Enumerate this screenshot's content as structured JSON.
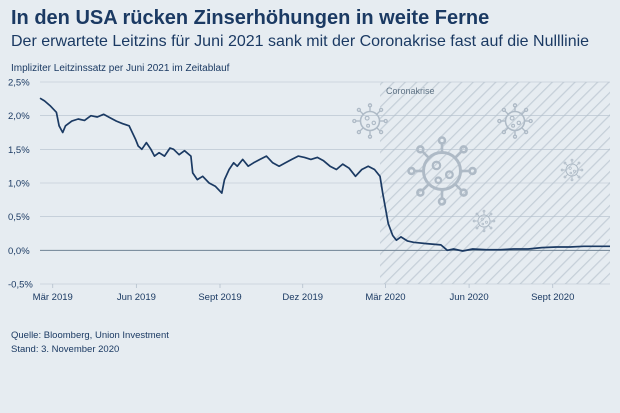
{
  "header": {
    "title": "In den USA rücken Zinserhöhungen in weite Ferne",
    "subtitle": "Der erwartete Leitzins für Juni 2021 sank mit der Coronakrise fast auf die Nulllinie"
  },
  "footer": {
    "source": "Quelle: Bloomberg, Union Investment",
    "date": "Stand: 3. November 2020"
  },
  "chart_data": {
    "type": "line",
    "ylabel": "Impliziter Leitzinssatz per Juni 2021 im Zeitablauf",
    "ylim": [
      -0.5,
      2.5
    ],
    "yticks": [
      {
        "value": 2.5,
        "label": "2,5%"
      },
      {
        "value": 2.0,
        "label": "2,0%"
      },
      {
        "value": 1.5,
        "label": "1,5%"
      },
      {
        "value": 1.0,
        "label": "1,0%"
      },
      {
        "value": 0.5,
        "label": "0,5%"
      },
      {
        "value": 0.0,
        "label": "0,0%"
      },
      {
        "value": -0.5,
        "label": "-0,5%"
      }
    ],
    "xlim": [
      "2019-02-15",
      "2020-11-03"
    ],
    "xticks": [
      {
        "date": "2019-03-01",
        "label": "Mär 2019"
      },
      {
        "date": "2019-06-01",
        "label": "Jun 2019"
      },
      {
        "date": "2019-09-01",
        "label": "Sept 2019"
      },
      {
        "date": "2019-12-01",
        "label": "Dez 2019"
      },
      {
        "date": "2020-03-01",
        "label": "Mär 2020"
      },
      {
        "date": "2020-06-01",
        "label": "Jun 2020"
      },
      {
        "date": "2020-09-01",
        "label": "Sept 2020"
      }
    ],
    "region": {
      "label": "Coronakrise",
      "start": "2020-02-24",
      "end": "2020-11-03"
    },
    "grid": true,
    "colors": {
      "line": "#1b3a63",
      "grid": "#b3c0cc",
      "zero": "#6f8394",
      "region_hatch": "#c5cfd8",
      "virus": "#aebac6"
    },
    "series": [
      {
        "points": [
          [
            "2019-02-15",
            2.26
          ],
          [
            "2019-02-20",
            2.22
          ],
          [
            "2019-02-26",
            2.15
          ],
          [
            "2019-03-05",
            2.05
          ],
          [
            "2019-03-08",
            1.85
          ],
          [
            "2019-03-12",
            1.75
          ],
          [
            "2019-03-15",
            1.85
          ],
          [
            "2019-03-22",
            1.92
          ],
          [
            "2019-03-29",
            1.95
          ],
          [
            "2019-04-05",
            1.93
          ],
          [
            "2019-04-12",
            2.0
          ],
          [
            "2019-04-19",
            1.98
          ],
          [
            "2019-04-26",
            2.02
          ],
          [
            "2019-05-03",
            1.97
          ],
          [
            "2019-05-10",
            1.92
          ],
          [
            "2019-05-17",
            1.88
          ],
          [
            "2019-05-24",
            1.85
          ],
          [
            "2019-05-31",
            1.65
          ],
          [
            "2019-06-03",
            1.55
          ],
          [
            "2019-06-07",
            1.5
          ],
          [
            "2019-06-12",
            1.6
          ],
          [
            "2019-06-17",
            1.5
          ],
          [
            "2019-06-21",
            1.4
          ],
          [
            "2019-06-26",
            1.45
          ],
          [
            "2019-07-02",
            1.4
          ],
          [
            "2019-07-08",
            1.52
          ],
          [
            "2019-07-12",
            1.5
          ],
          [
            "2019-07-18",
            1.42
          ],
          [
            "2019-07-24",
            1.48
          ],
          [
            "2019-07-31",
            1.4
          ],
          [
            "2019-08-02",
            1.15
          ],
          [
            "2019-08-07",
            1.05
          ],
          [
            "2019-08-13",
            1.1
          ],
          [
            "2019-08-20",
            1.0
          ],
          [
            "2019-08-27",
            0.95
          ],
          [
            "2019-09-03",
            0.85
          ],
          [
            "2019-09-06",
            1.05
          ],
          [
            "2019-09-11",
            1.2
          ],
          [
            "2019-09-16",
            1.3
          ],
          [
            "2019-09-20",
            1.25
          ],
          [
            "2019-09-26",
            1.35
          ],
          [
            "2019-10-02",
            1.25
          ],
          [
            "2019-10-08",
            1.3
          ],
          [
            "2019-10-15",
            1.35
          ],
          [
            "2019-10-22",
            1.4
          ],
          [
            "2019-10-29",
            1.3
          ],
          [
            "2019-11-05",
            1.25
          ],
          [
            "2019-11-12",
            1.3
          ],
          [
            "2019-11-19",
            1.35
          ],
          [
            "2019-11-26",
            1.4
          ],
          [
            "2019-12-03",
            1.38
          ],
          [
            "2019-12-10",
            1.35
          ],
          [
            "2019-12-17",
            1.38
          ],
          [
            "2019-12-24",
            1.33
          ],
          [
            "2019-12-31",
            1.25
          ],
          [
            "2020-01-07",
            1.2
          ],
          [
            "2020-01-14",
            1.28
          ],
          [
            "2020-01-21",
            1.22
          ],
          [
            "2020-01-28",
            1.1
          ],
          [
            "2020-02-04",
            1.2
          ],
          [
            "2020-02-11",
            1.25
          ],
          [
            "2020-02-18",
            1.2
          ],
          [
            "2020-02-24",
            1.1
          ],
          [
            "2020-02-27",
            0.85
          ],
          [
            "2020-03-02",
            0.55
          ],
          [
            "2020-03-04",
            0.4
          ],
          [
            "2020-03-09",
            0.22
          ],
          [
            "2020-03-13",
            0.15
          ],
          [
            "2020-03-18",
            0.2
          ],
          [
            "2020-03-25",
            0.14
          ],
          [
            "2020-04-01",
            0.12
          ],
          [
            "2020-04-15",
            0.1
          ],
          [
            "2020-05-01",
            0.08
          ],
          [
            "2020-05-08",
            0.0
          ],
          [
            "2020-05-15",
            0.02
          ],
          [
            "2020-05-25",
            -0.01
          ],
          [
            "2020-06-05",
            0.02
          ],
          [
            "2020-06-20",
            0.01
          ],
          [
            "2020-07-05",
            0.01
          ],
          [
            "2020-07-20",
            0.02
          ],
          [
            "2020-08-05",
            0.02
          ],
          [
            "2020-08-20",
            0.04
          ],
          [
            "2020-09-05",
            0.05
          ],
          [
            "2020-09-20",
            0.05
          ],
          [
            "2020-10-05",
            0.06
          ],
          [
            "2020-10-20",
            0.06
          ],
          [
            "2020-11-03",
            0.06
          ]
        ]
      }
    ]
  }
}
